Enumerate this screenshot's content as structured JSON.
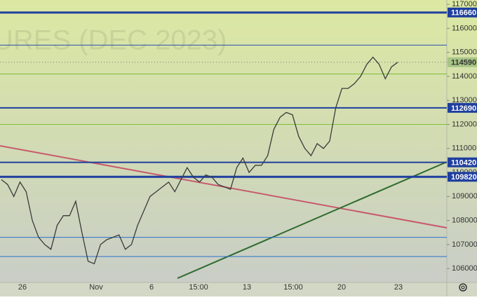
{
  "chart_data": {
    "type": "line",
    "watermark": "URES (DEC 2023)",
    "ylim": [
      105420,
      117180
    ],
    "yticks": [
      106000,
      107000,
      108000,
      109000,
      110000,
      111000,
      112000,
      113000,
      114000,
      115000,
      116000,
      117000
    ],
    "time_labels": [
      "26",
      "Nov",
      "6",
      "15:00",
      "13",
      "15:00",
      "20",
      "23"
    ],
    "series": [
      {
        "color": "#3a3a3a",
        "values": [
          109700,
          109500,
          109000,
          109600,
          109200,
          108000,
          107300,
          107000,
          106800,
          107800,
          108200,
          108200,
          108800,
          107500,
          106300,
          106200,
          107000,
          107200,
          107300,
          107400,
          106800,
          107000,
          107800,
          108400,
          109000,
          109200,
          109400,
          109600,
          109200,
          109700,
          110200,
          109800,
          109600,
          109900,
          109800,
          109500,
          109400,
          109300,
          110200,
          110600,
          110000,
          110300,
          110300,
          110700,
          111800,
          112300,
          112500,
          112400,
          111500,
          111000,
          110700,
          111200,
          111000,
          111300,
          112700,
          113500,
          113500,
          113700,
          114000,
          114500,
          114800,
          114500,
          113900,
          114400,
          114590
        ]
      }
    ],
    "last_price": 114590,
    "levels": [
      {
        "value": 116660,
        "color": "#1f3f9e",
        "width": 3,
        "labeled": true
      },
      {
        "value": 115300,
        "color": "#2a4fb0",
        "width": 1,
        "labeled": false
      },
      {
        "value": 114100,
        "color": "#7fbf3a",
        "width": 1,
        "labeled": false
      },
      {
        "value": 112690,
        "color": "#1f3f9e",
        "width": 2,
        "labeled": true
      },
      {
        "value": 112000,
        "color": "#7fbf3a",
        "width": 1,
        "labeled": false
      },
      {
        "value": 110420,
        "color": "#1f3f9e",
        "width": 2,
        "labeled": true
      },
      {
        "value": 109820,
        "color": "#1f3f9e",
        "width": 3,
        "labeled": true
      },
      {
        "value": 107300,
        "color": "#2a6fd0",
        "width": 1,
        "labeled": false
      },
      {
        "value": 106500,
        "color": "#2a6fd0",
        "width": 1,
        "labeled": false
      }
    ]
  }
}
